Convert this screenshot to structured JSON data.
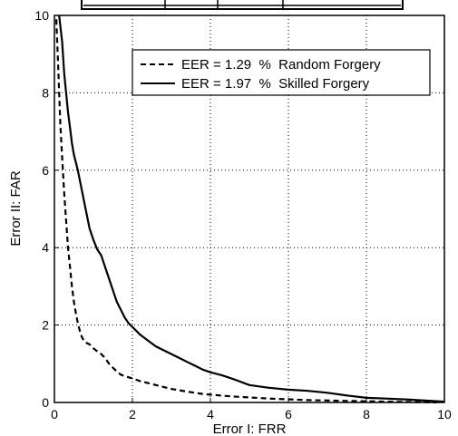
{
  "chart_data": {
    "type": "line",
    "xlabel": "Error I: FRR",
    "ylabel": "Error II: FAR",
    "xlim": [
      0,
      10
    ],
    "ylim": [
      0,
      10
    ],
    "xticks": [
      "0",
      "2",
      "4",
      "6",
      "8",
      "10"
    ],
    "yticks": [
      "0",
      "2",
      "4",
      "6",
      "8",
      "10"
    ],
    "grid": true,
    "legend_position": "top-right",
    "series": [
      {
        "name": "EER = 1.29  %  Random Forgery",
        "line_style": "dashed",
        "color": "#000000",
        "x": [
          0.05,
          0.1,
          0.15,
          0.2,
          0.25,
          0.3,
          0.35,
          0.4,
          0.45,
          0.5,
          0.55,
          0.6,
          0.65,
          0.7,
          0.75,
          0.8,
          0.9,
          1.0,
          1.1,
          1.2,
          1.3,
          1.4,
          1.5,
          1.6,
          1.7,
          1.8,
          1.9,
          2.0,
          2.2,
          2.4,
          2.6,
          2.8,
          3.0,
          3.4,
          3.8,
          4.5,
          5.5,
          6.5,
          7.5,
          8.5,
          9.5,
          9.8
        ],
        "y": [
          9.9,
          8.6,
          7.2,
          6.3,
          5.4,
          4.7,
          4.0,
          3.5,
          3.0,
          2.6,
          2.3,
          2.05,
          1.85,
          1.7,
          1.6,
          1.55,
          1.5,
          1.4,
          1.32,
          1.25,
          1.15,
          1.0,
          0.9,
          0.8,
          0.72,
          0.68,
          0.65,
          0.62,
          0.55,
          0.5,
          0.45,
          0.4,
          0.35,
          0.28,
          0.22,
          0.16,
          0.1,
          0.06,
          0.04,
          0.02,
          0.01,
          0.0
        ]
      },
      {
        "name": "EER = 1.97  %  Skilled Forgery",
        "line_style": "solid",
        "color": "#000000",
        "x": [
          0.12,
          0.2,
          0.25,
          0.3,
          0.35,
          0.4,
          0.45,
          0.5,
          0.6,
          0.7,
          0.8,
          0.9,
          1.0,
          1.1,
          1.2,
          1.3,
          1.4,
          1.5,
          1.6,
          1.7,
          1.8,
          1.9,
          2.0,
          2.2,
          2.4,
          2.6,
          2.8,
          3.0,
          3.2,
          3.4,
          3.6,
          3.8,
          4.0,
          4.3,
          4.6,
          5.0,
          5.5,
          6.0,
          6.5,
          7.0,
          7.5,
          8.0,
          8.5,
          9.0,
          9.5,
          10.0
        ],
        "y": [
          10.0,
          9.3,
          8.5,
          8.0,
          7.5,
          7.1,
          6.7,
          6.4,
          6.0,
          5.5,
          5.0,
          4.5,
          4.2,
          3.95,
          3.8,
          3.5,
          3.2,
          2.9,
          2.6,
          2.4,
          2.2,
          2.05,
          1.95,
          1.75,
          1.6,
          1.45,
          1.35,
          1.25,
          1.15,
          1.05,
          0.95,
          0.85,
          0.78,
          0.7,
          0.6,
          0.45,
          0.38,
          0.33,
          0.3,
          0.25,
          0.18,
          0.12,
          0.1,
          0.08,
          0.05,
          0.02
        ]
      }
    ]
  }
}
